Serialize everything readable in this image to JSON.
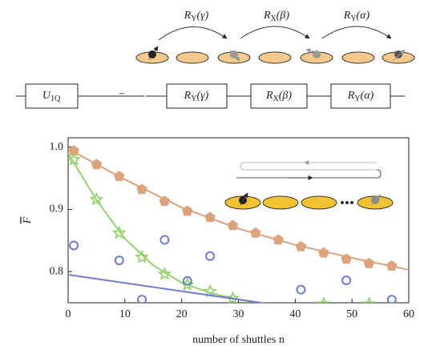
{
  "diagram": {
    "rotations": [
      {
        "base": "R",
        "sub": "Y",
        "arg": "(γ)"
      },
      {
        "base": "R",
        "sub": "X",
        "arg": "(β)"
      },
      {
        "base": "R",
        "sub": "Y",
        "arg": "(α)"
      }
    ],
    "circuit": {
      "lhs": {
        "base": "U",
        "sub": "1Q"
      },
      "equals": "=",
      "gates": [
        {
          "base": "R",
          "sub": "Y",
          "arg": "(γ)"
        },
        {
          "base": "R",
          "sub": "X",
          "arg": "(β)"
        },
        {
          "base": "R",
          "sub": "Y",
          "arg": "(α)"
        }
      ]
    }
  },
  "chart_data": {
    "type": "scatter",
    "x_label": "number of shuttles n",
    "y_label": "F",
    "xlim": [
      0,
      60
    ],
    "ylim": [
      0.75,
      1.015
    ],
    "xticks": [
      0,
      10,
      20,
      30,
      40,
      50,
      60
    ],
    "yticks": [
      0.8,
      0.9,
      {
        "value": 1.0,
        "label": "1.0"
      }
    ],
    "series": [
      {
        "kind": "markers",
        "marker": "pentagon",
        "color": "#dba27c",
        "x": [
          1,
          5,
          9,
          13,
          17,
          21,
          25,
          29,
          33,
          37,
          41,
          45,
          49,
          53,
          57
        ],
        "values": [
          0.994,
          0.972,
          0.953,
          0.932,
          0.913,
          0.897,
          0.887,
          0.874,
          0.862,
          0.851,
          0.84,
          0.83,
          0.82,
          0.813,
          0.809
        ]
      },
      {
        "kind": "line",
        "color": "#dba27c",
        "x": [
          0,
          10,
          20,
          30,
          40,
          50,
          60
        ],
        "values": [
          0.997,
          0.948,
          0.903,
          0.869,
          0.843,
          0.822,
          0.803
        ]
      },
      {
        "kind": "markers",
        "marker": "star",
        "color": "#94d46e",
        "x": [
          1,
          5,
          9,
          13,
          17,
          21,
          25,
          29,
          45,
          53
        ],
        "values": [
          0.98,
          0.916,
          0.862,
          0.823,
          0.796,
          0.779,
          0.768,
          0.757,
          0.748,
          0.748
        ]
      },
      {
        "kind": "line",
        "color": "#94d46e",
        "x": [
          0,
          5,
          10,
          15,
          20,
          25,
          30,
          35
        ],
        "values": [
          0.99,
          0.915,
          0.853,
          0.81,
          0.782,
          0.766,
          0.755,
          0.748
        ]
      },
      {
        "kind": "markers",
        "marker": "circle",
        "color": "#6f7bd0",
        "x": [
          1,
          9,
          13,
          17,
          21,
          25,
          41,
          49,
          57
        ],
        "values": [
          0.842,
          0.818,
          0.755,
          0.851,
          0.785,
          0.825,
          0.771,
          0.786,
          0.755
        ]
      },
      {
        "kind": "line",
        "color": "#6f7bd0",
        "x": [
          0,
          34
        ],
        "values": [
          0.795,
          0.75
        ]
      }
    ]
  }
}
